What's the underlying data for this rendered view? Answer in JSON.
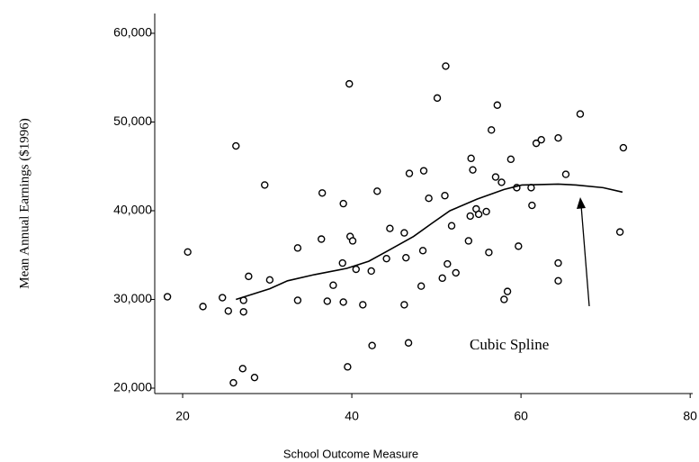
{
  "chart_data": {
    "type": "scatter",
    "x_label": "School Outcome Measure",
    "y_label": "Mean Annual Earnings ($1996)",
    "annotation": "Cubic Spline",
    "xlim": [
      16.7,
      80.3
    ],
    "ylim": [
      19390,
      62230
    ],
    "xticks": [
      20,
      40,
      60,
      80
    ],
    "yticks": [
      {
        "value": 20000,
        "label": "20,000"
      },
      {
        "value": 30000,
        "label": "30,000"
      },
      {
        "value": 40000,
        "label": "40,000"
      },
      {
        "value": 50000,
        "label": "50,000"
      },
      {
        "value": 60000,
        "label": "60,000"
      }
    ],
    "series": [
      {
        "type": "scatter",
        "color": "#000000",
        "x": [
          18.2,
          20.6,
          22.4,
          24.7,
          25.4,
          26.0,
          26.3,
          27.1,
          27.2,
          27.2,
          27.8,
          28.5,
          29.7,
          30.3,
          33.6,
          33.6,
          36.4,
          36.5,
          37.1,
          37.8,
          38.9,
          39.0,
          39.0,
          39.5,
          39.7,
          39.8,
          40.1,
          40.5,
          41.3,
          42.3,
          42.4,
          43.0,
          44.1,
          44.5,
          46.2,
          46.2,
          46.4,
          46.7,
          46.8,
          48.2,
          48.4,
          48.5,
          49.1,
          50.1,
          50.7,
          51.0,
          51.1,
          51.3,
          51.8,
          52.3,
          53.8,
          54.0,
          54.1,
          54.3,
          54.7,
          55.0,
          55.9,
          56.2,
          56.5,
          57.0,
          57.2,
          57.7,
          58.0,
          58.4,
          58.8,
          59.5,
          59.7,
          61.2,
          61.3,
          61.8,
          62.4,
          64.4,
          64.4,
          64.4,
          65.3,
          67.0,
          71.7,
          72.1
        ],
        "values": [
          30300,
          35350,
          29200,
          30200,
          28700,
          20600,
          47300,
          22200,
          29900,
          28600,
          32600,
          21200,
          42900,
          32200,
          35800,
          29900,
          36800,
          42000,
          29800,
          31600,
          34100,
          29700,
          40800,
          22400,
          54300,
          37100,
          36600,
          33400,
          29400,
          33200,
          24800,
          42200,
          34600,
          38000,
          29400,
          37500,
          34700,
          25100,
          44200,
          31500,
          35500,
          44500,
          41400,
          52700,
          32400,
          41700,
          56300,
          34000,
          38300,
          33000,
          36600,
          39400,
          45900,
          44600,
          40200,
          39600,
          39900,
          35300,
          49100,
          43800,
          51900,
          43200,
          30000,
          30900,
          45800,
          42600,
          36000,
          42600,
          40600,
          47600,
          48000,
          48200,
          34100,
          32100,
          44100,
          50900,
          37600,
          47100
        ]
      },
      {
        "type": "line",
        "color": "#000000",
        "x": [
          26.3,
          30.3,
          32.4,
          35.6,
          39.4,
          42.0,
          44.1,
          47.3,
          49.5,
          51.6,
          54.8,
          58.0,
          60.1,
          64.4,
          66.5,
          69.7,
          72.0
        ],
        "values": [
          30000,
          31200,
          32100,
          32800,
          33500,
          34300,
          35400,
          37100,
          38600,
          40000,
          41300,
          42400,
          42900,
          43000,
          42900,
          42600,
          42100
        ]
      }
    ]
  }
}
